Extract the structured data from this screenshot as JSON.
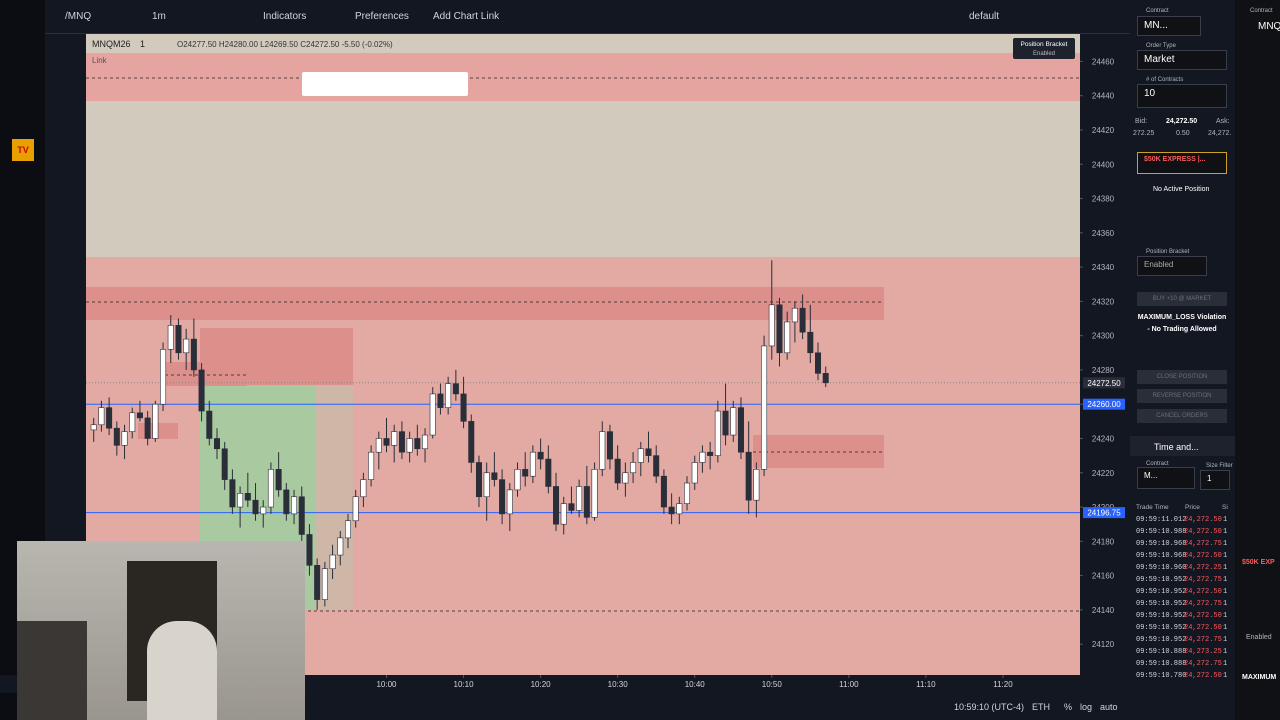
{
  "toolbar": {
    "symbol": "/MNQ",
    "interval": "1m",
    "indicators": "Indicators",
    "preferences": "Preferences",
    "add_chart_link": "Add Chart Link",
    "layout": "default"
  },
  "legend": {
    "symbol": "MNQM26",
    "interval": "1",
    "ohlc": "O24277.50 H24280.00 L24269.50 C24272.50 -5.50 (-0.02%)",
    "link": "Link"
  },
  "badge": {
    "title": "Position Bracket",
    "state": "Enabled"
  },
  "statusbar": {
    "clock": "10:59:10 (UTC-4)",
    "session": "ETH",
    "percent": "%",
    "log": "log",
    "auto": "auto"
  },
  "order_panel": {
    "contract_label": "Contract",
    "contract": "MN...",
    "order_type_label": "Order Type",
    "order_type": "Market",
    "contracts_label": "# of Contracts",
    "contracts": "10",
    "bid_label": "Bid:",
    "bid": "24,272.50",
    "ask_label": "Ask:",
    "bid_left": "272.25",
    "spread": "0.50",
    "ask": "24,272.",
    "account": "$50K EXPRESS |...",
    "position": "No Active Position",
    "bracket_label": "Position Bracket",
    "bracket": "Enabled",
    "buy": "BUY +10 @ MARKET",
    "violation": "MAXIMUM_LOSS Violation - No Trading Allowed",
    "close": "CLOSE POSITION",
    "reverse": "REVERSE POSITION",
    "cancel": "CANCEL ORDERS"
  },
  "time_sales": {
    "title": "Time and...",
    "contract_label": "Contract",
    "contract": "M...",
    "size_label": "Size Filter",
    "size": "1",
    "headers": [
      "Trade Time",
      "Price",
      "Si"
    ],
    "rows": [
      [
        "09:59:11.012",
        "24,272.50",
        "1"
      ],
      [
        "09:59:10.988",
        "24,272.50",
        "1"
      ],
      [
        "09:59:10.968",
        "24,272.75",
        "1"
      ],
      [
        "09:59:10.968",
        "24,272.50",
        "1"
      ],
      [
        "09:59:10.960",
        "24,272.25",
        "1"
      ],
      [
        "09:59:10.952",
        "24,272.75",
        "1"
      ],
      [
        "09:59:10.952",
        "24,272.50",
        "1"
      ],
      [
        "09:59:10.952",
        "24,272.75",
        "1"
      ],
      [
        "09:59:10.952",
        "24,272.50",
        "1"
      ],
      [
        "09:59:10.952",
        "24,272.50",
        "1"
      ],
      [
        "09:59:10.952",
        "24,272.75",
        "1"
      ],
      [
        "09:59:10.888",
        "24,273.25",
        "1"
      ],
      [
        "09:59:10.888",
        "24,272.75",
        "1"
      ],
      [
        "09:59:10.780",
        "24,272.50",
        "1"
      ]
    ]
  },
  "side": {
    "contract_label": "Contract",
    "contract": "MNQ",
    "account": "$50K EXP",
    "bracket": "Enabled",
    "violation": "MAXIMUM"
  },
  "chart_data": {
    "type": "candlestick",
    "up_color": "#ffffff",
    "down_color": "#2a2e39",
    "xlim": [
      "09:21",
      "11:30"
    ],
    "xticks": [
      "10:00",
      "10:10",
      "10:20",
      "10:30",
      "10:40",
      "10:50",
      "11:00",
      "11:10",
      "11:20"
    ],
    "ylim": [
      24102,
      24476
    ],
    "yticks": [
      24120,
      24140,
      24160,
      24180,
      24200,
      24220,
      24240,
      24260,
      24280,
      24300,
      24320,
      24340,
      24360,
      24380,
      24400,
      24420,
      24440,
      24460
    ],
    "price_lines": {
      "values": [
        24260,
        24196.75
      ],
      "value_labels": [
        "24260.00",
        "24196.75"
      ],
      "color": "#2962ff"
    },
    "last_price": {
      "value": 24272.5,
      "label": "24272.50"
    },
    "x": [
      "09:22",
      "09:23",
      "09:24",
      "09:25",
      "09:26",
      "09:27",
      "09:28",
      "09:29",
      "09:30",
      "09:31",
      "09:32",
      "09:33",
      "09:34",
      "09:35",
      "09:36",
      "09:37",
      "09:38",
      "09:39",
      "09:40",
      "09:41",
      "09:42",
      "09:43",
      "09:44",
      "09:45",
      "09:46",
      "09:47",
      "09:48",
      "09:49",
      "09:50",
      "09:51",
      "09:52",
      "09:53",
      "09:54",
      "09:55",
      "09:56",
      "09:57",
      "09:58",
      "09:59",
      "10:00",
      "10:01",
      "10:02",
      "10:03",
      "10:04",
      "10:05",
      "10:06",
      "10:07",
      "10:08",
      "10:09",
      "10:10",
      "10:11",
      "10:12",
      "10:13",
      "10:14",
      "10:15",
      "10:16",
      "10:17",
      "10:18",
      "10:19",
      "10:20",
      "10:21",
      "10:22",
      "10:23",
      "10:24",
      "10:25",
      "10:26",
      "10:27",
      "10:28",
      "10:29",
      "10:30",
      "10:31",
      "10:32",
      "10:33",
      "10:34",
      "10:35",
      "10:36",
      "10:37",
      "10:38",
      "10:39",
      "10:40",
      "10:41",
      "10:42",
      "10:43",
      "10:44",
      "10:45",
      "10:46",
      "10:47",
      "10:48",
      "10:49",
      "10:50",
      "10:51",
      "10:52",
      "10:53",
      "10:54",
      "10:55",
      "10:56",
      "10:57"
    ],
    "open": [
      24245,
      24248,
      24258,
      24246,
      24236,
      24244,
      24255,
      24252,
      24240,
      24260,
      24292,
      24306,
      24290,
      24298,
      24280,
      24256,
      24240,
      24234,
      24216,
      24200,
      24208,
      24204,
      24196,
      24200,
      24222,
      24210,
      24196,
      24206,
      24184,
      24166,
      24146,
      24164,
      24172,
      24182,
      24192,
      24206,
      24216,
      24232,
      24240,
      24236,
      24244,
      24232,
      24240,
      24234,
      24242,
      24266,
      24258,
      24272,
      24266,
      24250,
      24226,
      24206,
      24220,
      24216,
      24196,
      24210,
      24222,
      24218,
      24232,
      24228,
      24212,
      24190,
      24202,
      24198,
      24212,
      24194,
      24222,
      24244,
      24228,
      24214,
      24220,
      24226,
      24234,
      24230,
      24218,
      24200,
      24196,
      24202,
      24214,
      24226,
      24232,
      24230,
      24256,
      24242,
      24258,
      24232,
      24204,
      24222,
      24294,
      24318,
      24290,
      24308,
      24316,
      24302,
      24290,
      24278
    ],
    "high": [
      24252,
      24262,
      24264,
      24250,
      24248,
      24258,
      24262,
      24256,
      24262,
      24296,
      24312,
      24310,
      24304,
      24310,
      24284,
      24262,
      24246,
      24238,
      24222,
      24212,
      24220,
      24214,
      24204,
      24226,
      24232,
      24214,
      24210,
      24212,
      24190,
      24170,
      24168,
      24178,
      24186,
      24196,
      24210,
      24220,
      24236,
      24244,
      24252,
      24248,
      24250,
      24244,
      24248,
      24246,
      24270,
      24272,
      24276,
      24280,
      24276,
      24254,
      24230,
      24226,
      24232,
      24222,
      24214,
      24226,
      24232,
      24236,
      24240,
      24236,
      24220,
      24206,
      24212,
      24216,
      24224,
      24226,
      24250,
      24248,
      24236,
      24226,
      24232,
      24238,
      24244,
      24236,
      24222,
      24208,
      24206,
      24218,
      24230,
      24236,
      24238,
      24262,
      24272,
      24262,
      24264,
      24250,
      24226,
      24300,
      24344,
      24322,
      24314,
      24320,
      24324,
      24318,
      24296,
      24282
    ],
    "low": [
      24238,
      24244,
      24242,
      24230,
      24228,
      24240,
      24250,
      24236,
      24238,
      24256,
      24284,
      24286,
      24280,
      24276,
      24250,
      24236,
      24228,
      24210,
      24196,
      24188,
      24200,
      24192,
      24188,
      24196,
      24206,
      24192,
      24190,
      24180,
      24160,
      24140,
      24142,
      24158,
      24166,
      24176,
      24188,
      24200,
      24212,
      24222,
      24232,
      24226,
      24228,
      24226,
      24230,
      24226,
      24240,
      24254,
      24254,
      24262,
      24246,
      24220,
      24200,
      24192,
      24212,
      24190,
      24186,
      24206,
      24212,
      24214,
      24222,
      24208,
      24186,
      24184,
      24196,
      24194,
      24190,
      24192,
      24218,
      24222,
      24210,
      24206,
      24214,
      24218,
      24226,
      24214,
      24196,
      24190,
      24190,
      24198,
      24210,
      24220,
      24222,
      24226,
      24236,
      24238,
      24228,
      24196,
      24194,
      24218,
      24286,
      24282,
      24286,
      24296,
      24298,
      24284,
      24274,
      24270
    ],
    "close": [
      24248,
      24258,
      24246,
      24236,
      24244,
      24255,
      24252,
      24240,
      24260,
      24292,
      24306,
      24290,
      24298,
      24280,
      24256,
      24240,
      24234,
      24216,
      24200,
      24208,
      24204,
      24196,
      24200,
      24222,
      24210,
      24196,
      24206,
      24184,
      24166,
      24146,
      24164,
      24172,
      24182,
      24192,
      24206,
      24216,
      24232,
      24240,
      24236,
      24244,
      24232,
      24240,
      24234,
      24242,
      24266,
      24258,
      24272,
      24266,
      24250,
      24226,
      24206,
      24220,
      24216,
      24196,
      24210,
      24222,
      24218,
      24232,
      24228,
      24212,
      24190,
      24202,
      24198,
      24212,
      24194,
      24222,
      24244,
      24228,
      24214,
      24220,
      24226,
      24234,
      24230,
      24218,
      24200,
      24196,
      24202,
      24214,
      24226,
      24232,
      24230,
      24256,
      24242,
      24258,
      24232,
      24204,
      24222,
      24294,
      24318,
      24290,
      24308,
      24316,
      24302,
      24290,
      24278,
      24272.5
    ]
  }
}
